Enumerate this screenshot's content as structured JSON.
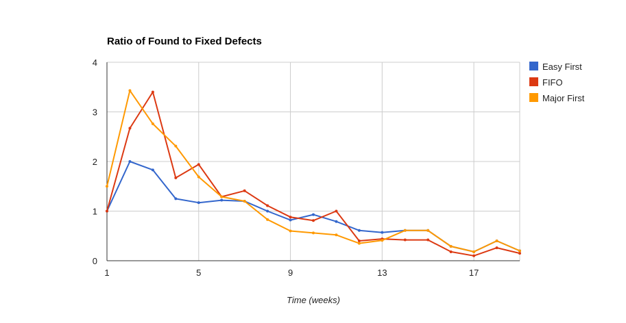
{
  "chart_data": {
    "type": "line",
    "title": "Ratio of Found to Fixed Defects",
    "xlabel": "Time (weeks)",
    "ylabel": "",
    "xlim": [
      1,
      19
    ],
    "ylim": [
      0,
      4
    ],
    "x_ticks": [
      1,
      5,
      9,
      13,
      17
    ],
    "y_ticks": [
      0,
      1,
      2,
      3,
      4
    ],
    "grid": true,
    "legend": "right",
    "x": [
      1,
      2,
      3,
      4,
      5,
      6,
      7,
      8,
      9,
      10,
      11,
      12,
      13,
      14,
      15,
      16,
      17,
      18,
      19
    ],
    "series": [
      {
        "name": "Easy First",
        "color": "#3366cc",
        "values": [
          1.0,
          2.0,
          1.83,
          1.25,
          1.17,
          1.22,
          1.2,
          1.0,
          0.82,
          0.93,
          0.79,
          0.61,
          0.57,
          0.61,
          0.61,
          0.29,
          0.18,
          0.4,
          0.2
        ]
      },
      {
        "name": "FIFO",
        "color": "#dc3912",
        "values": [
          1.0,
          2.67,
          3.4,
          1.67,
          1.94,
          1.29,
          1.41,
          1.11,
          0.88,
          0.81,
          1.0,
          0.4,
          0.44,
          0.42,
          0.42,
          0.18,
          0.1,
          0.26,
          0.15
        ]
      },
      {
        "name": "Major First",
        "color": "#ff9900",
        "values": [
          1.5,
          3.43,
          2.76,
          2.31,
          1.69,
          1.29,
          1.2,
          0.83,
          0.6,
          0.56,
          0.52,
          0.35,
          0.41,
          0.61,
          0.61,
          0.29,
          0.18,
          0.4,
          0.2
        ]
      }
    ]
  }
}
